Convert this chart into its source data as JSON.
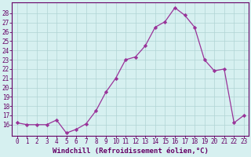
{
  "x": [
    0,
    1,
    2,
    3,
    4,
    5,
    6,
    7,
    8,
    9,
    10,
    11,
    12,
    13,
    14,
    15,
    16,
    17,
    18,
    19,
    20,
    21,
    22,
    23
  ],
  "y": [
    16.2,
    16.0,
    16.0,
    16.0,
    16.5,
    15.1,
    15.5,
    16.1,
    17.5,
    19.5,
    21.0,
    23.0,
    23.3,
    24.5,
    26.5,
    27.1,
    28.6,
    27.8,
    26.5,
    23.0,
    21.8,
    22.0,
    16.2,
    17.0
  ],
  "line_color": "#993399",
  "marker": "D",
  "marker_size": 2.2,
  "bg_color": "#d6f0f0",
  "grid_color": "#b0d4d4",
  "axis_label_color": "#660066",
  "tick_color": "#660066",
  "xlabel": "Windchill (Refroidissement éolien,°C)",
  "ylabel": "",
  "title": "",
  "ylim": [
    14.8,
    29.2
  ],
  "yticks": [
    16,
    17,
    18,
    19,
    20,
    21,
    22,
    23,
    24,
    25,
    26,
    27,
    28
  ],
  "xticks": [
    0,
    1,
    2,
    3,
    4,
    5,
    6,
    7,
    8,
    9,
    10,
    11,
    12,
    13,
    14,
    15,
    16,
    17,
    18,
    19,
    20,
    21,
    22,
    23
  ],
  "xtick_labels": [
    "0",
    "1",
    "2",
    "3",
    "4",
    "5",
    "6",
    "7",
    "8",
    "9",
    "10",
    "11",
    "12",
    "13",
    "14",
    "15",
    "16",
    "17",
    "18",
    "19",
    "20",
    "21",
    "22",
    "23"
  ],
  "ytick_labels": [
    "16",
    "17",
    "18",
    "19",
    "20",
    "21",
    "22",
    "23",
    "24",
    "25",
    "26",
    "27",
    "28"
  ],
  "spine_color": "#660066",
  "tick_font_size": 5.5,
  "xlabel_font_size": 6.5,
  "linewidth": 0.9
}
